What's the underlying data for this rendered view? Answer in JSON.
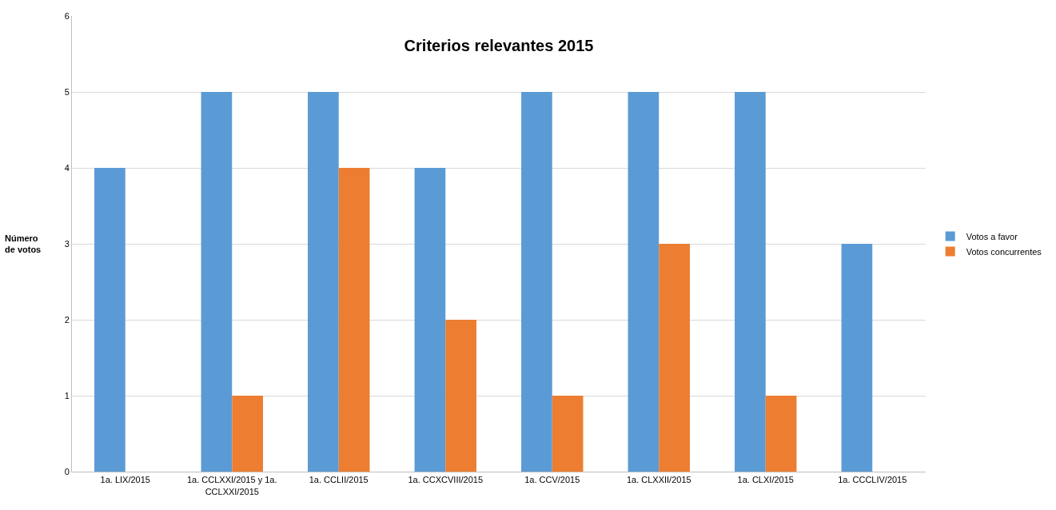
{
  "chart_data": {
    "type": "bar",
    "title": "Criterios relevantes 2015",
    "ylabel": "Número de votos",
    "categories": [
      "1a. LIX/2015",
      "1a. CCLXXI/2015 y 1a. CCLXXI/2015",
      "1a. CCLII/2015",
      "1a. CCXCVIII/2015",
      "1a. CCV/2015",
      "1a. CLXXII/2015",
      "1a. CLXI/2015",
      "1a. CCCLIV/2015"
    ],
    "series": [
      {
        "name": "Votos a favor",
        "color": "#5b9bd5",
        "values": [
          4,
          5,
          5,
          4,
          5,
          5,
          5,
          3
        ]
      },
      {
        "name": "Votos concurrentes",
        "color": "#ed7d31",
        "values": [
          0,
          1,
          4,
          2,
          1,
          3,
          1,
          0
        ]
      }
    ],
    "ylim": [
      0,
      6
    ],
    "yticks": [
      0,
      1,
      2,
      3,
      4,
      5,
      6
    ],
    "grid": "y",
    "legend": "right"
  }
}
